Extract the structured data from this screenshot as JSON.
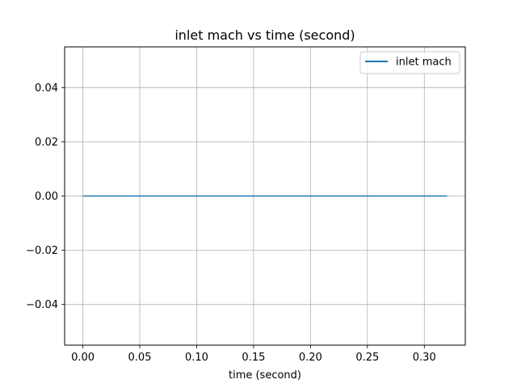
{
  "chart_data": {
    "type": "line",
    "title": "inlet mach vs time (second)",
    "xlabel": "time (second)",
    "ylabel": "",
    "xlim": [
      -0.016,
      0.336
    ],
    "ylim": [
      -0.055,
      0.055
    ],
    "x_ticks": [
      0.0,
      0.05,
      0.1,
      0.15,
      0.2,
      0.25,
      0.3
    ],
    "x_tick_labels": [
      "0.00",
      "0.05",
      "0.10",
      "0.15",
      "0.20",
      "0.25",
      "0.30"
    ],
    "y_ticks": [
      0.04,
      0.02,
      0.0,
      -0.02,
      -0.04
    ],
    "y_tick_labels": [
      "0.04",
      "0.02",
      "0.00",
      "−0.02",
      "−0.04"
    ],
    "grid": true,
    "legend_position": "top-right",
    "series": [
      {
        "name": "inlet mach",
        "color": "#1f77b4",
        "x": [
          0.0,
          0.32
        ],
        "y": [
          0.0,
          0.0
        ]
      }
    ]
  }
}
